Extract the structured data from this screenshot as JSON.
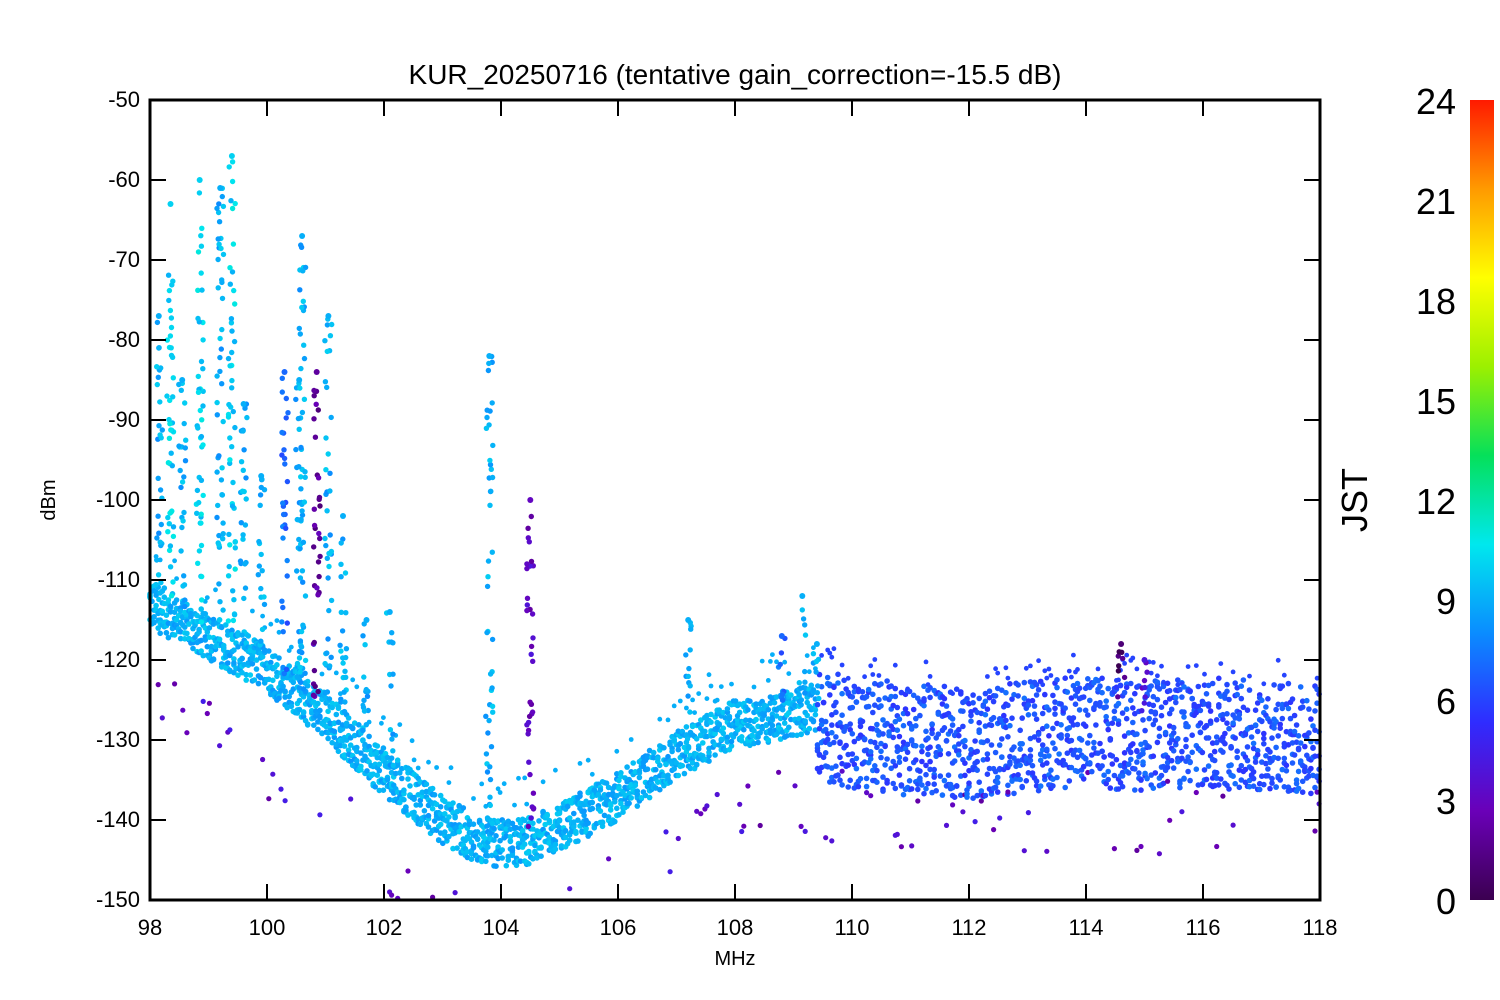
{
  "chart_data": {
    "type": "scatter",
    "title": "KUR_20250716 (tentative gain_correction=-15.5 dB)",
    "xlabel": "MHz",
    "ylabel": "dBm",
    "xlim": [
      98,
      118
    ],
    "ylim": [
      -150,
      -50
    ],
    "x_ticks": [
      "98",
      "100",
      "102",
      "104",
      "106",
      "108",
      "110",
      "112",
      "114",
      "116",
      "118"
    ],
    "y_ticks": [
      "-50",
      "-60",
      "-70",
      "-80",
      "-90",
      "-100",
      "-110",
      "-120",
      "-130",
      "-140",
      "-150"
    ],
    "colorbar": {
      "label": "JST",
      "range": [
        0,
        24
      ],
      "ticks": [
        "0",
        "3",
        "6",
        "9",
        "12",
        "15",
        "18",
        "21",
        "24"
      ],
      "colormap": [
        "#3b0050",
        "#6a00b8",
        "#2f2cff",
        "#0a8cff",
        "#00e8ee",
        "#05e05a",
        "#9cf000",
        "#ffff00",
        "#ff9a00",
        "#ff1a00"
      ]
    },
    "noise_floor": {
      "x": [
        98,
        99,
        100,
        101,
        102,
        103,
        103.5,
        104,
        104.5,
        105,
        106,
        107,
        107.5,
        108,
        108.5,
        109,
        109.4,
        110,
        111,
        112,
        113,
        114,
        115,
        116,
        117,
        118
      ],
      "y": [
        -112,
        -116,
        -120,
        -126,
        -133,
        -139,
        -141,
        -142,
        -141.5,
        -140,
        -136,
        -131,
        -129,
        -127,
        -126.5,
        -125.5,
        -125,
        -126,
        -127,
        -127.5,
        -126.5,
        -126,
        -126.5,
        -126,
        -126.5,
        -127
      ]
    },
    "signals": [
      {
        "x": 98.15,
        "y_max": -77,
        "hour": 9
      },
      {
        "x": 98.35,
        "y_max": -63,
        "hour": 10
      },
      {
        "x": 98.55,
        "y_max": -85,
        "hour": 9
      },
      {
        "x": 98.85,
        "y_max": -60,
        "hour": 10
      },
      {
        "x": 99.2,
        "y_max": -61,
        "hour": 9
      },
      {
        "x": 99.4,
        "y_max": -57,
        "hour": 10
      },
      {
        "x": 99.6,
        "y_max": -88,
        "hour": 9
      },
      {
        "x": 99.9,
        "y_max": -97,
        "hour": 9
      },
      {
        "x": 100.3,
        "y_max": -84,
        "hour": 7
      },
      {
        "x": 100.55,
        "y_max": -85,
        "hour": 9
      },
      {
        "x": 100.6,
        "y_max": -67,
        "hour": 9
      },
      {
        "x": 100.85,
        "y_max": -84,
        "hour": 2
      },
      {
        "x": 101.05,
        "y_max": -77,
        "hour": 9
      },
      {
        "x": 101.3,
        "y_max": -102,
        "hour": 9
      },
      {
        "x": 101.7,
        "y_max": -115,
        "hour": 9
      },
      {
        "x": 102.1,
        "y_max": -114,
        "hour": 9
      },
      {
        "x": 103.8,
        "y_max": -82,
        "hour": 9
      },
      {
        "x": 104.5,
        "y_max": -100,
        "hour": 3
      },
      {
        "x": 107.2,
        "y_max": -115,
        "hour": 9
      },
      {
        "x": 108.8,
        "y_max": -117,
        "hour": 7
      },
      {
        "x": 109.15,
        "y_max": -112,
        "hour": 9
      },
      {
        "x": 109.4,
        "y_max": -118,
        "hour": 9
      },
      {
        "x": 114.6,
        "y_max": -118,
        "hour": 1
      },
      {
        "x": 115.0,
        "y_max": -120,
        "hour": 4
      }
    ],
    "grid": false
  }
}
